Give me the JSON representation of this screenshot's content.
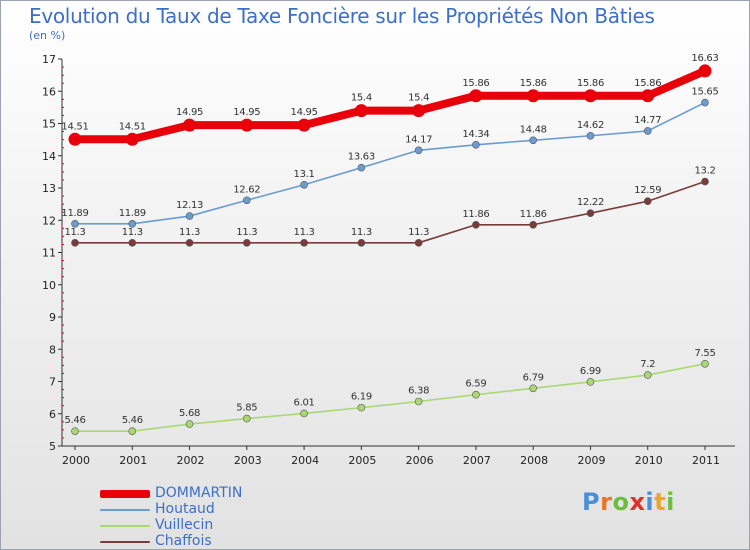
{
  "header": {
    "title": "Evolution du Taux de Taxe Foncière sur les Propriétés Non Bâties",
    "unit": "(en %)"
  },
  "logo": {
    "letters": [
      "P",
      "r",
      "o",
      "x",
      "i",
      "t",
      "i"
    ],
    "colors": [
      "#4a90d9",
      "#e8732a",
      "#6cbf3c",
      "#d9342b",
      "#4a90d9",
      "#e8a72a",
      "#6cbf3c"
    ]
  },
  "chart_data": {
    "type": "line",
    "x": [
      "2000",
      "2001",
      "2002",
      "2003",
      "2004",
      "2005",
      "2006",
      "2007",
      "2008",
      "2009",
      "2010",
      "2011"
    ],
    "ylim": [
      5,
      17
    ],
    "yticks": [
      "5",
      "6",
      "7",
      "8",
      "9",
      "10",
      "11",
      "12",
      "13",
      "14",
      "15",
      "16",
      "17"
    ],
    "grid": false,
    "legend_position": "bottom-left",
    "series": [
      {
        "name": "DOMMARTIN",
        "color": "#e8000b",
        "values": [
          14.51,
          14.51,
          14.95,
          14.95,
          14.95,
          15.4,
          15.4,
          15.86,
          15.86,
          15.86,
          15.86,
          16.63
        ],
        "labels": [
          "14.51",
          "14.51",
          "14.95",
          "14.95",
          "14.95",
          "15.4",
          "15.4",
          "15.86",
          "15.86",
          "15.86",
          "15.86",
          "16.63"
        ]
      },
      {
        "name": "Houtaud",
        "color": "#6b9ccf",
        "values": [
          11.89,
          11.89,
          12.13,
          12.62,
          13.1,
          13.63,
          14.17,
          14.34,
          14.48,
          14.62,
          14.77,
          15.65
        ],
        "labels": [
          "11.89",
          "11.89",
          "12.13",
          "12.62",
          "13.1",
          "13.63",
          "14.17",
          "14.34",
          "14.48",
          "14.62",
          "14.77",
          "15.65"
        ]
      },
      {
        "name": "Vuillecin",
        "color": "#a9d873",
        "values": [
          5.46,
          5.46,
          5.68,
          5.85,
          6.01,
          6.19,
          6.38,
          6.59,
          6.79,
          6.99,
          7.2,
          7.55
        ],
        "labels": [
          "5.46",
          "5.46",
          "5.68",
          "5.85",
          "6.01",
          "6.19",
          "6.38",
          "6.59",
          "6.79",
          "6.99",
          "7.2",
          "7.55"
        ]
      },
      {
        "name": "Chaffois",
        "color": "#7a3b3b",
        "values": [
          11.3,
          11.3,
          11.3,
          11.3,
          11.3,
          11.3,
          11.3,
          11.86,
          11.86,
          12.22,
          12.59,
          13.2
        ],
        "labels": [
          "11.3",
          "11.3",
          "11.3",
          "11.3",
          "11.3",
          "11.3",
          "11.3",
          "11.86",
          "11.86",
          "12.22",
          "12.59",
          "13.2"
        ]
      }
    ]
  }
}
